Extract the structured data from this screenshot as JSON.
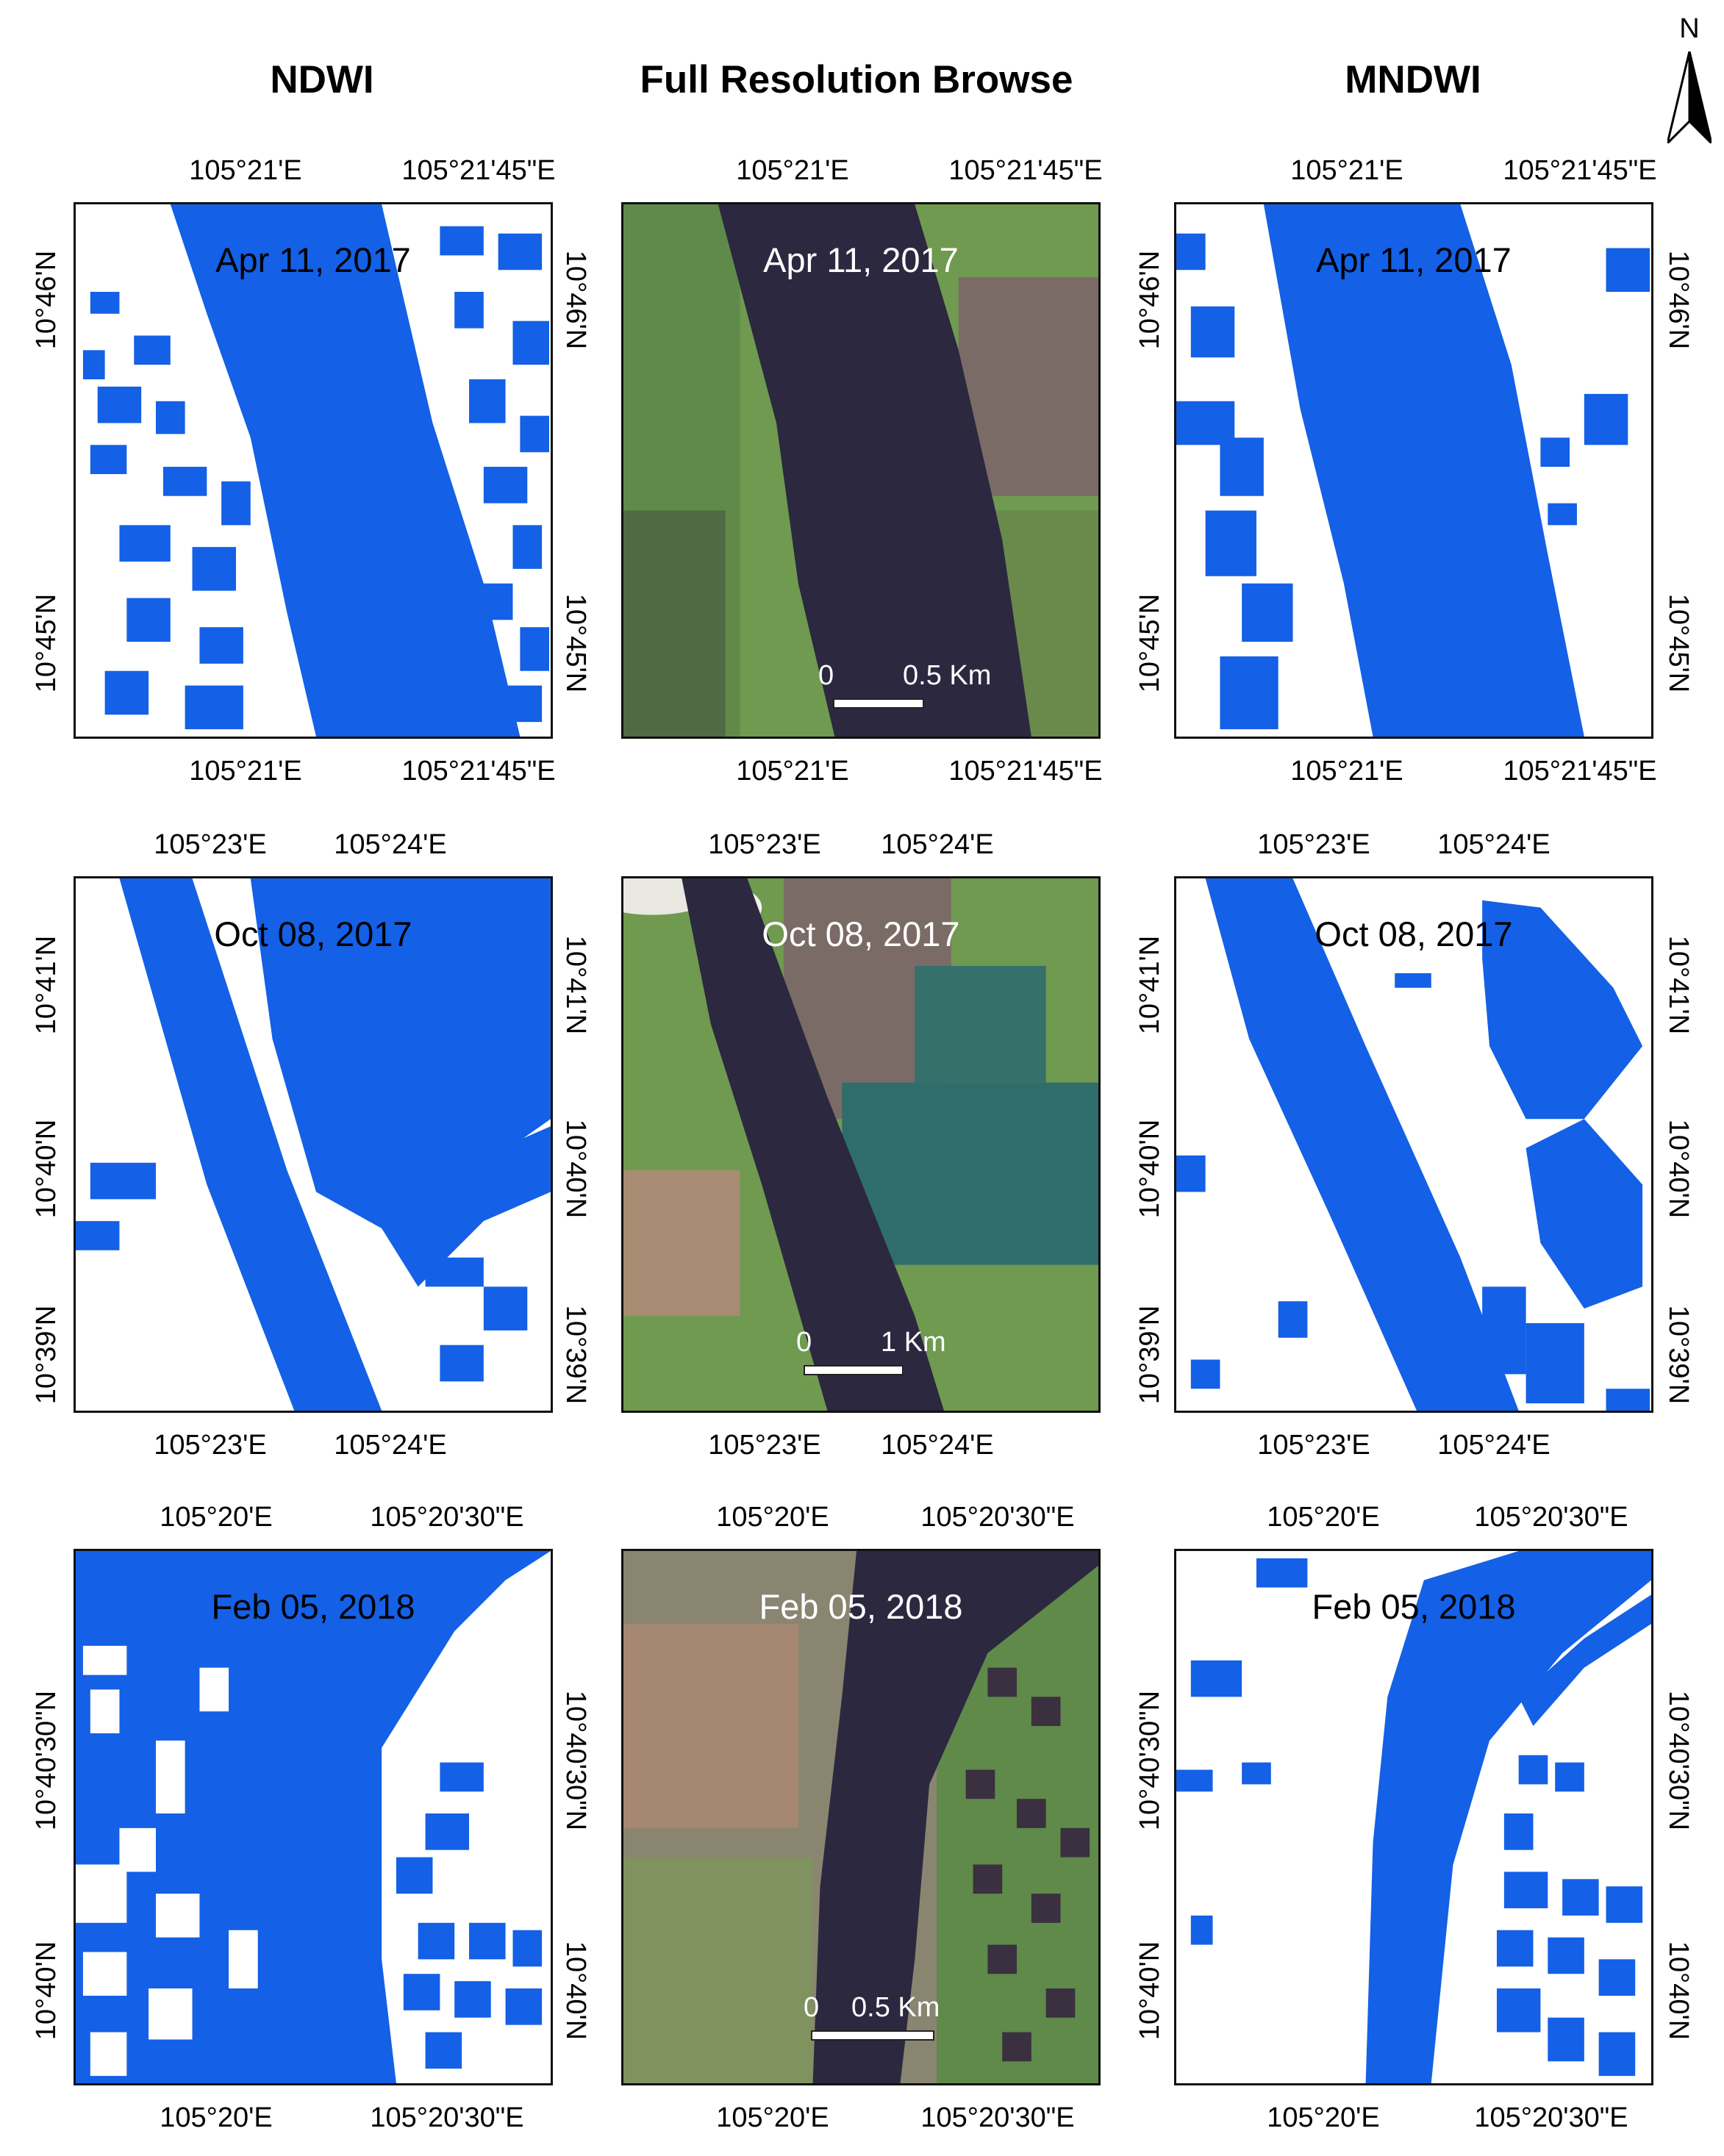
{
  "columns": {
    "ndwi": "NDWI",
    "browse": "Full Resolution Browse",
    "mndwi": "MNDWI"
  },
  "north_label": "N",
  "rows": [
    {
      "date": "Apr 11, 2017",
      "lon_ticks": [
        "105°21'E",
        "105°21'45\"E"
      ],
      "lat_ticks": [
        "10°46'N",
        "10°45'N"
      ],
      "scale": {
        "zero": "0",
        "end": "0.5 Km"
      }
    },
    {
      "date": "Oct 08, 2017",
      "lon_ticks": [
        "105°23'E",
        "105°24'E"
      ],
      "lat_ticks": [
        "10°41'N",
        "10°40'N",
        "10°39'N"
      ],
      "scale": {
        "zero": "0",
        "end": "1 Km"
      }
    },
    {
      "date": "Feb 05, 2018",
      "lon_ticks": [
        "105°20'E",
        "105°20'30\"E"
      ],
      "lat_ticks": [
        "10°40'30\"N",
        "10°40'N"
      ],
      "scale": {
        "zero": "0",
        "end": "0.5 Km"
      }
    }
  ],
  "colors": {
    "water": "#1460e6",
    "land_mask": "#ffffff",
    "river_browse": "#2b2840",
    "vegetation": "#6f9a4f"
  }
}
